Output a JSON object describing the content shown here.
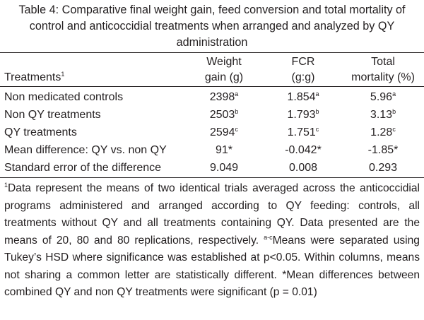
{
  "caption": {
    "line1": "Table 4: Comparative final weight gain, feed conversion and total mortality of",
    "line2": "control and anticoccidial treatments when arranged and analyzed by QY",
    "line3": "administration"
  },
  "table": {
    "columns": {
      "treatments": {
        "label": "Treatments",
        "sup": "1"
      },
      "weight_gain": {
        "line1": "Weight",
        "line2": "gain (g)"
      },
      "fcr": {
        "line1": "FCR",
        "line2": "(g:g)"
      },
      "mortality": {
        "line1": "Total",
        "line2": "mortality (%)"
      }
    },
    "rows": [
      {
        "label": "Non medicated controls",
        "weight": "2398",
        "weight_sup": "a",
        "fcr": "1.854",
        "fcr_sup": "a",
        "mort": "5.96",
        "mort_sup": "a"
      },
      {
        "label": "Non QY treatments",
        "weight": "2503",
        "weight_sup": "b",
        "fcr": "1.793",
        "fcr_sup": "b",
        "mort": "3.13",
        "mort_sup": "b"
      },
      {
        "label": "QY treatments",
        "weight": "2594",
        "weight_sup": "c",
        "fcr": "1.751",
        "fcr_sup": "c",
        "mort": "1.28",
        "mort_sup": "c"
      },
      {
        "label": "Mean difference: QY vs. non QY",
        "weight": "91*",
        "weight_sup": "",
        "fcr": "-0.042*",
        "fcr_sup": "",
        "mort": "-1.85*",
        "mort_sup": ""
      },
      {
        "label": "Standard error of the difference",
        "weight": "9.049",
        "weight_sup": "",
        "fcr": "0.008",
        "fcr_sup": "",
        "mort": "0.293",
        "mort_sup": ""
      }
    ]
  },
  "footnote": {
    "sup1": "1",
    "part1": "Data represent the means of two identical trials averaged across the anticoccidial programs administered and arranged according to QY feeding: controls, all treatments without QY and all treatments containing QY. Data presented are the means of 20, 80 and 80 replications, respectively. ",
    "sup2": "a-c",
    "part2": "Means were separated using Tukey’s HSD where significance was established at p<0.05. Within columns, means not sharing a common letter are statistically different. *Mean differences between combined QY and non QY treatments were significant (p = 0.01)"
  }
}
